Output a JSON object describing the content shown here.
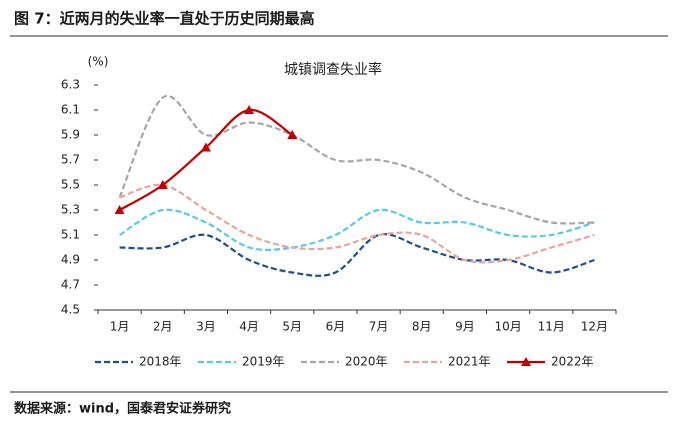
{
  "header": {
    "title": "图 7：近两月的失业率一直处于历史同期最高"
  },
  "source": "数据来源：wind，国泰君安证券研究",
  "chart_data": {
    "type": "line",
    "title": "城镇调查失业率",
    "y_label": "(%)",
    "categories": [
      "1月",
      "2月",
      "3月",
      "4月",
      "5月",
      "6月",
      "7月",
      "8月",
      "9月",
      "10月",
      "11月",
      "12月"
    ],
    "series": [
      {
        "name": "2018年",
        "color": "#1f4e8c",
        "dash": true,
        "values": [
          5.0,
          5.0,
          5.1,
          4.9,
          4.8,
          4.8,
          5.1,
          5.0,
          4.9,
          4.9,
          4.8,
          4.9
        ]
      },
      {
        "name": "2019年",
        "color": "#5bc8e8",
        "dash": true,
        "values": [
          5.1,
          5.3,
          5.2,
          5.0,
          5.0,
          5.1,
          5.3,
          5.2,
          5.2,
          5.1,
          5.1,
          5.2
        ]
      },
      {
        "name": "2020年",
        "color": "#a6a6a6",
        "dash": true,
        "values": [
          5.4,
          6.2,
          5.9,
          6.0,
          5.9,
          5.7,
          5.7,
          5.6,
          5.4,
          5.3,
          5.2,
          5.2
        ]
      },
      {
        "name": "2021年",
        "color": "#e6a5a0",
        "dash": true,
        "values": [
          5.4,
          5.5,
          5.3,
          5.1,
          5.0,
          5.0,
          5.1,
          5.1,
          4.9,
          4.9,
          5.0,
          5.1
        ]
      },
      {
        "name": "2022年",
        "color": "#c00000",
        "dash": false,
        "marker": "triangle",
        "values": [
          5.3,
          5.5,
          5.8,
          6.1,
          5.9,
          null,
          null,
          null,
          null,
          null,
          null,
          null
        ]
      }
    ],
    "ylim": [
      4.5,
      6.3
    ],
    "yticks": [
      4.5,
      4.7,
      4.9,
      5.1,
      5.3,
      5.5,
      5.7,
      5.9,
      6.1,
      6.3
    ],
    "grid": false
  }
}
